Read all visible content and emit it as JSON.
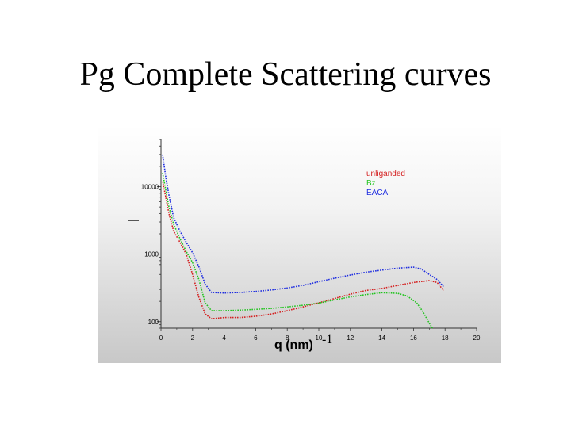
{
  "slide": {
    "title": "Pg Complete Scattering curves"
  },
  "chart_data": {
    "type": "line",
    "xlabel": "q (nm)",
    "xlabel_superscript": "-1",
    "x_ticks": [
      "0",
      "2",
      "4",
      "6",
      "8",
      "10",
      "12",
      "14",
      "16",
      "18",
      "20"
    ],
    "x_range": [
      0,
      20
    ],
    "y_ticks": [
      "10000",
      "1000",
      "100"
    ],
    "y_scale": "log",
    "y_range": [
      80,
      50000
    ],
    "legend_position": "top-right",
    "series": [
      {
        "name": "unliganded",
        "color": "#d42020",
        "points": [
          [
            0.1,
            12000
          ],
          [
            0.3,
            7000
          ],
          [
            0.5,
            4000
          ],
          [
            0.8,
            2200
          ],
          [
            1.2,
            1500
          ],
          [
            1.6,
            1000
          ],
          [
            2.0,
            500
          ],
          [
            2.4,
            230
          ],
          [
            2.8,
            130
          ],
          [
            3.2,
            110
          ],
          [
            4,
            115
          ],
          [
            5,
            115
          ],
          [
            6,
            120
          ],
          [
            7,
            130
          ],
          [
            8,
            145
          ],
          [
            9,
            165
          ],
          [
            10,
            190
          ],
          [
            11,
            220
          ],
          [
            12,
            255
          ],
          [
            13,
            290
          ],
          [
            14,
            310
          ],
          [
            15,
            345
          ],
          [
            16,
            380
          ],
          [
            17,
            405
          ],
          [
            17.5,
            380
          ],
          [
            17.9,
            290
          ]
        ]
      },
      {
        "name": "Bz",
        "color": "#22c41f",
        "points": [
          [
            0.1,
            16000
          ],
          [
            0.3,
            9000
          ],
          [
            0.5,
            5000
          ],
          [
            0.8,
            2800
          ],
          [
            1.2,
            1700
          ],
          [
            1.6,
            1100
          ],
          [
            2.0,
            750
          ],
          [
            2.4,
            420
          ],
          [
            2.8,
            190
          ],
          [
            3.2,
            145
          ],
          [
            4,
            145
          ],
          [
            5,
            148
          ],
          [
            6,
            152
          ],
          [
            7,
            157
          ],
          [
            8,
            165
          ],
          [
            9,
            175
          ],
          [
            10,
            188
          ],
          [
            11,
            210
          ],
          [
            12,
            232
          ],
          [
            13,
            252
          ],
          [
            14,
            268
          ],
          [
            15,
            262
          ],
          [
            15.6,
            240
          ],
          [
            16.2,
            190
          ],
          [
            16.6,
            140
          ],
          [
            17,
            95
          ],
          [
            17.2,
            80
          ]
        ]
      },
      {
        "name": "EACA",
        "color": "#1f2ee0",
        "points": [
          [
            0.1,
            30000
          ],
          [
            0.3,
            14000
          ],
          [
            0.5,
            7500
          ],
          [
            0.8,
            3500
          ],
          [
            1.2,
            2200
          ],
          [
            1.6,
            1500
          ],
          [
            2.0,
            1050
          ],
          [
            2.4,
            650
          ],
          [
            2.8,
            360
          ],
          [
            3.2,
            270
          ],
          [
            4,
            265
          ],
          [
            5,
            270
          ],
          [
            6,
            280
          ],
          [
            7,
            295
          ],
          [
            8,
            315
          ],
          [
            9,
            345
          ],
          [
            10,
            390
          ],
          [
            11,
            440
          ],
          [
            12,
            490
          ],
          [
            13,
            540
          ],
          [
            14,
            580
          ],
          [
            15,
            620
          ],
          [
            16,
            640
          ],
          [
            16.5,
            600
          ],
          [
            17,
            500
          ],
          [
            17.5,
            420
          ],
          [
            17.9,
            330
          ]
        ]
      }
    ]
  }
}
